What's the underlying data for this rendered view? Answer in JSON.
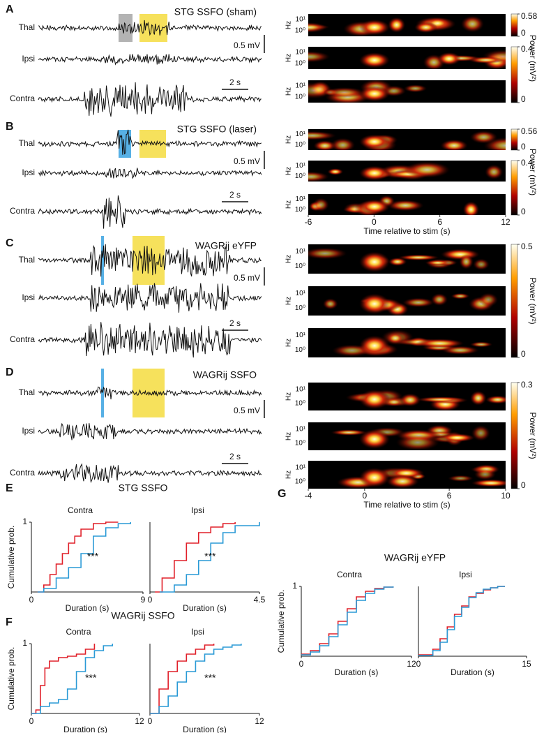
{
  "panels": [
    {
      "letter": "A",
      "title": "STG SSFO (sham)",
      "channels": [
        "Thal",
        "Ipsi",
        "Contra"
      ],
      "scale_v": "0.5 mV",
      "scale_t": "2 s",
      "spectrogram": {
        "ylabel": "Hz",
        "yticks": [
          "10¹",
          "10⁰"
        ],
        "colorbar_label": "Power (mV²)",
        "colorbars": [
          {
            "ylim": [
              0,
              0.58
            ],
            "yticks": [
              0,
              0.58
            ]
          },
          {
            "ylim": [
              0,
              0.4
            ],
            "yticks": [
              0,
              0.4
            ]
          }
        ]
      }
    },
    {
      "letter": "B",
      "title": "STG SSFO (laser)",
      "channels": [
        "Thal",
        "Ipsi",
        "Contra"
      ],
      "scale_v": "0.5 mV",
      "scale_t": "2 s",
      "spectrogram": {
        "ylabel": "Hz",
        "yticks": [
          "10¹",
          "10⁰"
        ],
        "colorbar_label": "Power (mV²)",
        "colorbars": [
          {
            "ylim": [
              0,
              0.56
            ],
            "yticks": [
              0,
              0.56
            ]
          },
          {
            "ylim": [
              0,
              0.4
            ],
            "yticks": [
              0,
              0.4
            ]
          }
        ],
        "time_axis": {
          "label": "Time relative to stim (s)",
          "xlim": [
            -6,
            12
          ],
          "xticks": [
            -6,
            0,
            6,
            12
          ]
        }
      }
    },
    {
      "letter": "C",
      "title": "WAGRij eYFP",
      "channels": [
        "Thal",
        "Ipsi",
        "Contra"
      ],
      "scale_v": "0.5 mV",
      "scale_t": "2 s",
      "spectrogram": {
        "ylabel": "Hz",
        "yticks": [
          "10¹",
          "10⁰"
        ],
        "colorbar_label": "Power (mV²)",
        "colorbars": [
          {
            "ylim": [
              0,
              0.5
            ],
            "yticks": [
              0,
              0.5
            ]
          }
        ]
      }
    },
    {
      "letter": "D",
      "title": "WAGRij SSFO",
      "channels": [
        "Thal",
        "Ipsi",
        "Contra"
      ],
      "scale_v": "0.5 mV",
      "scale_t": "2 s",
      "spectrogram": {
        "ylabel": "Hz",
        "yticks": [
          "10¹",
          "10⁰"
        ],
        "colorbar_label": "Power (mV²)",
        "colorbars": [
          {
            "ylim": [
              0,
              0.3
            ],
            "yticks": [
              0,
              0.3
            ]
          }
        ],
        "time_axis": {
          "label": "Time relative to stim (s)",
          "xlim": [
            -4,
            10
          ],
          "xticks": [
            -4,
            0,
            6,
            10
          ]
        }
      }
    }
  ],
  "cdf_headers": [
    {
      "letter": "E",
      "title": "STG SSFO"
    },
    {
      "letter": "F",
      "title": "WAGRij SSFO"
    },
    {
      "letter": "G",
      "title": "WAGRij eYFP"
    }
  ],
  "chart_data": [
    {
      "type": "step",
      "title": "Contra",
      "ylabel": "Cumulative prob.",
      "xlabel": "Duration (s)",
      "annotation": "***",
      "xlim": [
        0,
        9
      ],
      "xticks": [
        0,
        9
      ],
      "ylim": [
        0,
        1
      ],
      "yticks": [
        1
      ],
      "series": [
        {
          "color": "#e0202a",
          "x": [
            0.5,
            1,
            1.5,
            2,
            2.5,
            3,
            3.5,
            4,
            5,
            6,
            7
          ],
          "values": [
            0,
            0.1,
            0.25,
            0.4,
            0.55,
            0.7,
            0.8,
            0.9,
            0.98,
            1,
            1
          ]
        },
        {
          "color": "#2a9ad6",
          "x": [
            0.5,
            1,
            2,
            3,
            4,
            5,
            6,
            7,
            8
          ],
          "values": [
            0,
            0.05,
            0.2,
            0.35,
            0.55,
            0.8,
            0.92,
            0.98,
            1
          ]
        }
      ]
    },
    {
      "type": "step",
      "title": "Ipsi",
      "xlabel": "Duration (s)",
      "annotation": "***",
      "xlim": [
        0,
        4.5
      ],
      "xticks": [
        0,
        4.5
      ],
      "ylim": [
        0,
        1
      ],
      "series": [
        {
          "color": "#e0202a",
          "x": [
            0.2,
            0.5,
            1,
            1.5,
            2,
            2.5,
            3,
            3.5
          ],
          "values": [
            0,
            0.2,
            0.45,
            0.7,
            0.85,
            0.93,
            0.98,
            1
          ]
        },
        {
          "color": "#2a9ad6",
          "x": [
            0.4,
            1,
            1.5,
            2,
            2.5,
            3,
            3.5,
            4.5
          ],
          "values": [
            0,
            0.1,
            0.25,
            0.45,
            0.7,
            0.85,
            0.95,
            1
          ]
        }
      ]
    },
    {
      "type": "step",
      "title": "Contra",
      "ylabel": "Cumulative prob.",
      "xlabel": "Duration (s)",
      "annotation": "***",
      "xlim": [
        0,
        12
      ],
      "xticks": [
        0,
        12
      ],
      "ylim": [
        0,
        1
      ],
      "yticks": [
        1
      ],
      "series": [
        {
          "color": "#e0202a",
          "x": [
            0,
            0.5,
            1,
            1.5,
            2,
            3,
            4,
            5,
            6,
            7
          ],
          "values": [
            0,
            0.05,
            0.4,
            0.65,
            0.75,
            0.8,
            0.82,
            0.85,
            0.92,
            1
          ]
        },
        {
          "color": "#2a9ad6",
          "x": [
            0,
            1,
            2,
            3,
            4,
            5,
            6,
            7,
            8,
            9
          ],
          "values": [
            0,
            0.1,
            0.15,
            0.2,
            0.35,
            0.6,
            0.8,
            0.9,
            0.97,
            1
          ]
        }
      ]
    },
    {
      "type": "step",
      "title": "Ipsi",
      "xlabel": "Duration (s)",
      "annotation": "***",
      "xlim": [
        0,
        12
      ],
      "xticks": [
        0,
        12
      ],
      "ylim": [
        0,
        1
      ],
      "series": [
        {
          "color": "#e0202a",
          "x": [
            0,
            1,
            2,
            3,
            4,
            5,
            6,
            7
          ],
          "values": [
            0,
            0.35,
            0.6,
            0.75,
            0.85,
            0.92,
            0.98,
            1
          ]
        },
        {
          "color": "#2a9ad6",
          "x": [
            0,
            1,
            2,
            3,
            4,
            5,
            6,
            7,
            8,
            9,
            10
          ],
          "values": [
            0,
            0.1,
            0.25,
            0.45,
            0.6,
            0.75,
            0.85,
            0.92,
            0.95,
            0.98,
            1
          ]
        }
      ]
    },
    {
      "type": "step",
      "title": "Contra",
      "ylabel": "Cumulative prob.",
      "xlabel": "Duration (s)",
      "xlim": [
        0,
        12
      ],
      "xticks": [
        0,
        12
      ],
      "ylim": [
        0,
        1
      ],
      "yticks": [
        1
      ],
      "series": [
        {
          "color": "#e0202a",
          "x": [
            0,
            1,
            2,
            3,
            4,
            5,
            6,
            7,
            8,
            9,
            10
          ],
          "values": [
            0.03,
            0.08,
            0.18,
            0.32,
            0.5,
            0.68,
            0.85,
            0.93,
            0.97,
            0.99,
            1
          ]
        },
        {
          "color": "#2a9ad6",
          "x": [
            0,
            1,
            2,
            3,
            4,
            5,
            6,
            7,
            8,
            9,
            10
          ],
          "values": [
            0.02,
            0.06,
            0.15,
            0.28,
            0.45,
            0.63,
            0.8,
            0.9,
            0.96,
            0.99,
            1
          ]
        }
      ]
    },
    {
      "type": "step",
      "title": "Ipsi",
      "xlabel": "Duration (s)",
      "xlim": [
        0,
        15
      ],
      "xticks": [
        0,
        15
      ],
      "ylim": [
        0,
        1
      ],
      "series": [
        {
          "color": "#e0202a",
          "x": [
            0,
            2,
            3,
            4,
            5,
            6,
            7,
            8,
            9,
            10,
            11,
            12
          ],
          "values": [
            0.02,
            0.1,
            0.25,
            0.42,
            0.6,
            0.72,
            0.85,
            0.9,
            0.95,
            0.98,
            1,
            1
          ]
        },
        {
          "color": "#2a9ad6",
          "x": [
            0,
            2,
            3,
            4,
            5,
            6,
            7,
            8,
            9,
            10,
            11,
            12
          ],
          "values": [
            0.01,
            0.08,
            0.2,
            0.38,
            0.57,
            0.7,
            0.84,
            0.91,
            0.96,
            0.98,
            1,
            1
          ]
        }
      ]
    }
  ]
}
